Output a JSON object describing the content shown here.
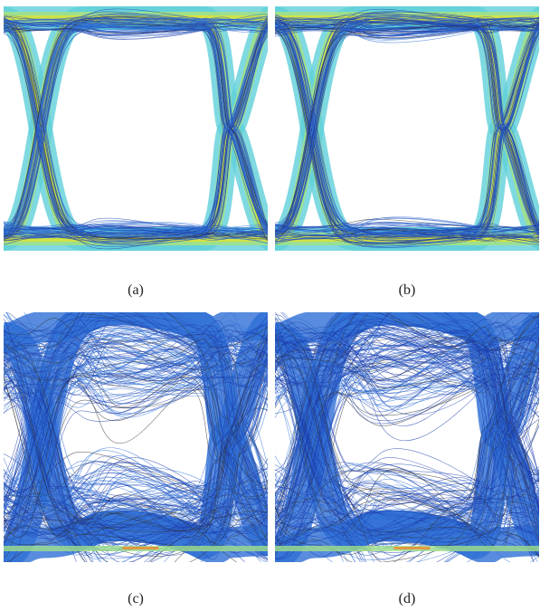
{
  "figure": {
    "panels": [
      {
        "id": "a",
        "caption": "(a)",
        "style": "open-eye-hot"
      },
      {
        "id": "b",
        "caption": "(b)",
        "style": "open-eye-shifted"
      },
      {
        "id": "c",
        "caption": "(c)",
        "style": "closing-eye-noisy"
      },
      {
        "id": "d",
        "caption": "(d)",
        "style": "distorted-eye-noisy"
      }
    ],
    "colors": {
      "trace_dark": "#1d3fae",
      "trace_mid": "#2f6fd6",
      "band_cyan": "#5fd0d8",
      "band_green": "#9fe08a",
      "band_yellow": "#d8e23a",
      "hot_orange": "#f08a2a",
      "outline": "#333333"
    }
  }
}
